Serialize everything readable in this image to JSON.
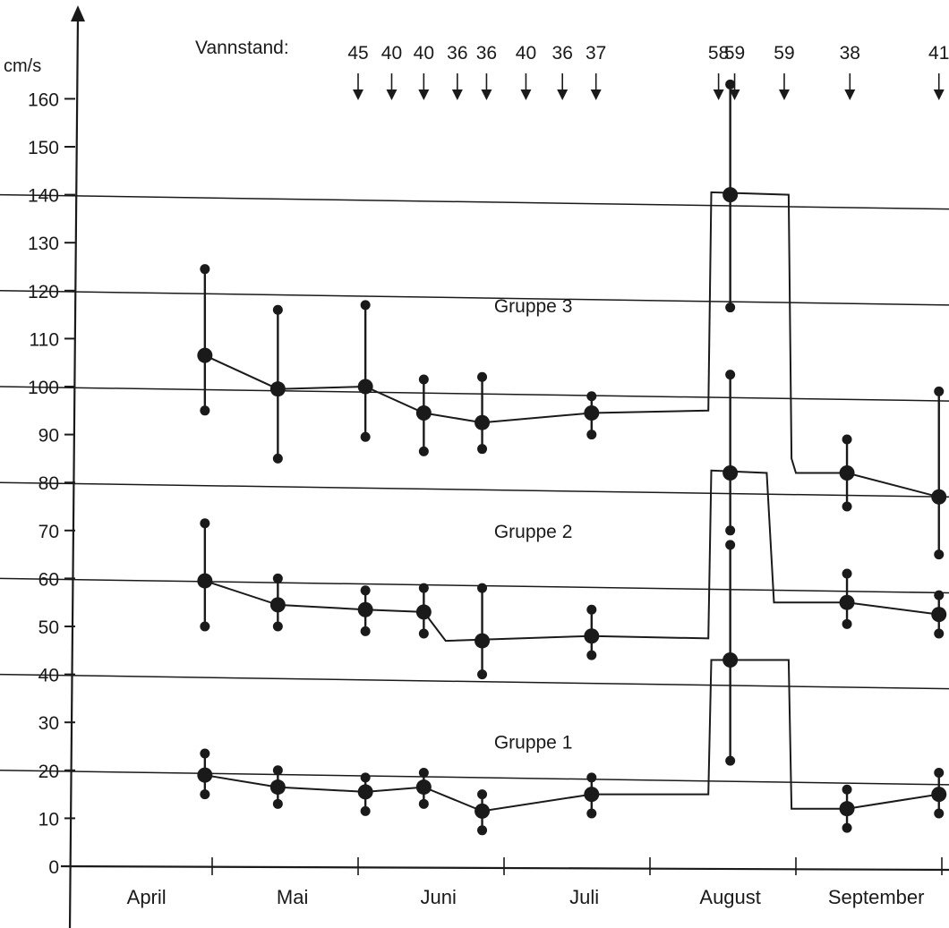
{
  "chart_data": {
    "type": "line",
    "title": "",
    "xlabel": "",
    "ylabel": "cm/s",
    "ylim": [
      0,
      160
    ],
    "yticks": [
      0,
      10,
      20,
      30,
      40,
      50,
      60,
      70,
      80,
      90,
      100,
      110,
      120,
      130,
      140,
      150,
      160
    ],
    "months": [
      "April",
      "Mai",
      "Juni",
      "Juli",
      "August",
      "September"
    ],
    "x_unit": "month (0 = start of April, 6 = end of September)",
    "grid": "horizontal lines every 20 cm/s",
    "vannstand": {
      "label": "Vannstand:",
      "entries": [
        {
          "x": 2.0,
          "value": "45"
        },
        {
          "x": 2.23,
          "value": "40"
        },
        {
          "x": 2.45,
          "value": "40"
        },
        {
          "x": 2.68,
          "value": "36"
        },
        {
          "x": 2.88,
          "value": "36"
        },
        {
          "x": 3.15,
          "value": "40"
        },
        {
          "x": 3.4,
          "value": "36"
        },
        {
          "x": 3.63,
          "value": "37"
        },
        {
          "x": 4.47,
          "value": "58"
        },
        {
          "x": 4.58,
          "value": "59"
        },
        {
          "x": 4.92,
          "value": "59"
        },
        {
          "x": 5.37,
          "value": "38"
        },
        {
          "x": 5.98,
          "value": "41"
        }
      ]
    },
    "series": [
      {
        "name": "Gruppe 1",
        "x": [
          0.95,
          1.45,
          2.05,
          2.45,
          2.85,
          3.6,
          4.55,
          5.35,
          5.98
        ],
        "mean": [
          19,
          16.5,
          15.5,
          16.5,
          11.5,
          15,
          43,
          12,
          15
        ],
        "low": [
          15,
          13,
          11.5,
          13,
          7.5,
          11,
          22,
          8,
          11
        ],
        "high": [
          23.5,
          20,
          18.5,
          19.5,
          15,
          18.5,
          67,
          16,
          19.5
        ],
        "step": [
          [
            0.95,
            19
          ],
          [
            1.45,
            16.5
          ],
          [
            2.05,
            15.5
          ],
          [
            2.45,
            16.5
          ],
          [
            2.85,
            11.5
          ],
          [
            3.6,
            15
          ],
          [
            4.4,
            15
          ],
          [
            4.42,
            43
          ],
          [
            4.95,
            43
          ],
          [
            4.97,
            12
          ],
          [
            5.35,
            12
          ],
          [
            5.98,
            15
          ]
        ]
      },
      {
        "name": "Gruppe 2",
        "x": [
          0.95,
          1.45,
          2.05,
          2.45,
          2.85,
          3.6,
          4.55,
          5.35,
          5.98
        ],
        "mean": [
          59.5,
          54.5,
          53.5,
          53,
          47,
          48,
          82,
          55,
          52.5
        ],
        "low": [
          50,
          50,
          49,
          48.5,
          40,
          44,
          70,
          50.5,
          48.5
        ],
        "high": [
          71.5,
          60,
          57.5,
          58,
          58,
          53.5,
          102.5,
          61,
          56.5
        ],
        "step": [
          [
            0.95,
            59.5
          ],
          [
            1.45,
            54.5
          ],
          [
            2.05,
            53.5
          ],
          [
            2.45,
            53
          ],
          [
            2.6,
            47
          ],
          [
            3.6,
            48
          ],
          [
            4.4,
            47.5
          ],
          [
            4.42,
            82.5
          ],
          [
            4.8,
            82
          ],
          [
            4.85,
            55
          ],
          [
            5.35,
            55
          ],
          [
            5.98,
            52.5
          ]
        ]
      },
      {
        "name": "Gruppe 3",
        "x": [
          0.95,
          1.45,
          2.05,
          2.45,
          2.85,
          3.6,
          4.55,
          5.35,
          5.98
        ],
        "mean": [
          106.5,
          99.5,
          100,
          94.5,
          92.5,
          94.5,
          140,
          82,
          77
        ],
        "low": [
          95,
          85,
          89.5,
          86.5,
          87,
          90,
          116.5,
          75,
          65
        ],
        "high": [
          124.5,
          116,
          117,
          101.5,
          102,
          98,
          163,
          89,
          99
        ],
        "step": [
          [
            0.95,
            106.5
          ],
          [
            1.45,
            99.5
          ],
          [
            2.05,
            100
          ],
          [
            2.45,
            94.5
          ],
          [
            2.85,
            92.5
          ],
          [
            3.6,
            94.5
          ],
          [
            4.4,
            95
          ],
          [
            4.42,
            140.5
          ],
          [
            4.95,
            140
          ],
          [
            4.97,
            85
          ],
          [
            5.0,
            82
          ],
          [
            5.35,
            82
          ],
          [
            5.98,
            77
          ]
        ]
      }
    ],
    "reference_lines": [
      {
        "y_left": 20,
        "y_right": 17
      },
      {
        "y_left": 40,
        "y_right": 37
      },
      {
        "y_left": 60,
        "y_right": 57
      },
      {
        "y_left": 80,
        "y_right": 77
      },
      {
        "y_left": 100,
        "y_right": 97
      },
      {
        "y_left": 120,
        "y_right": 117
      },
      {
        "y_left": 140,
        "y_right": 137
      }
    ],
    "group_labels": [
      {
        "text": "Gruppe 3",
        "x": 3.2,
        "y": 115.5
      },
      {
        "text": "Gruppe 2",
        "x": 3.2,
        "y": 68.5
      },
      {
        "text": "Gruppe 1",
        "x": 3.2,
        "y": 24.5
      }
    ]
  }
}
